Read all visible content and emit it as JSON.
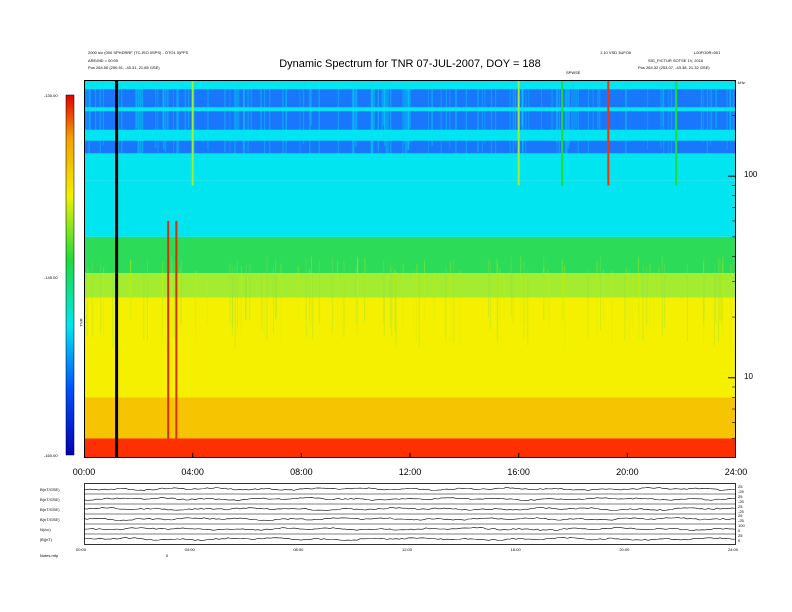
{
  "header": {
    "title": "Dynamic Spectrum for TNR 07-JUL-2007, DOY = 188",
    "left_line1": "2000 s/c (000 SPHDRRF (TC-ISO 0SPS) - OTO1 0)PFS",
    "left_line2": "ARE/MD = 00:00",
    "left_pos": "Pos    264.50 (250.51, -40.31, 21.85 GSE)",
    "right_line1": "1.10 VSD 3UFO0",
    "right_line2": "L00FO0R=001",
    "right_line3": "SIG_FICTUR SOTSE 1V, 2010",
    "right_pos": "Pos    264.32 (253.07, -43.38, 21.32 GSE)",
    "right_small": "SPWSE",
    "khz_label": "kHz"
  },
  "colorbar": {
    "ticks": [
      "-130.00",
      "-145.00",
      "-160.00"
    ],
    "label": "TNR"
  },
  "chart_data": {
    "type": "heatmap",
    "title": "Dynamic Spectrum for TNR 07-JUL-2007, DOY = 188",
    "x_ticks": [
      "00:00",
      "04:00",
      "08:00",
      "12:00",
      "16:00",
      "20:00",
      "24:00"
    ],
    "x_range_hours": [
      0,
      24
    ],
    "y_scale": "log",
    "y_ticks": [
      "100",
      "10"
    ],
    "y_tick_values": [
      100,
      10
    ],
    "y_range_khz": [
      4,
      300
    ],
    "colorbar_range": [
      -160,
      -130
    ],
    "colorbar_ticks": [
      -130,
      -145,
      -160
    ],
    "colormap": [
      "#0000c8",
      "#1c64ff",
      "#00e5f0",
      "#1cdc3c",
      "#f0f000",
      "#f5b400",
      "#ff2200"
    ],
    "bands": [
      {
        "from_khz": 300,
        "to_khz": 95,
        "color": "#00e5f0"
      },
      {
        "from_khz": 95,
        "to_khz": 50,
        "color": "#00e5f0"
      },
      {
        "from_khz": 50,
        "to_khz": 33,
        "color": "#2cdc58"
      },
      {
        "from_khz": 33,
        "to_khz": 25,
        "color": "#a4ec30"
      },
      {
        "from_khz": 25,
        "to_khz": 8,
        "color": "#f4f000"
      },
      {
        "from_khz": 8,
        "to_khz": 5,
        "color": "#f6c400"
      },
      {
        "from_khz": 5,
        "to_khz": 4,
        "color": "#ff3000"
      }
    ],
    "blue_bands_khz": [
      [
        270,
        220
      ],
      [
        210,
        170
      ],
      [
        150,
        130
      ]
    ],
    "vertical_features": [
      {
        "hour": 1.2,
        "color": "#000000"
      },
      {
        "hour": 3.1,
        "color": "#d83000"
      },
      {
        "hour": 3.4,
        "color": "#d83000"
      },
      {
        "hour": 4.0,
        "color": "#a4ec30"
      },
      {
        "hour": 16.0,
        "color": "#a4ec30"
      },
      {
        "hour": 17.6,
        "color": "#1cdc3c"
      },
      {
        "hour": 19.3,
        "color": "#ff3000"
      },
      {
        "hour": 21.8,
        "color": "#1cdc3c"
      }
    ]
  },
  "lower_panels": {
    "left_labels": [
      "B(nT/GSE)",
      "B(nT/GSE)",
      "B(nT/GSE)",
      "B(nT/GSE)",
      "N(/cc)",
      "|B|(nT)"
    ],
    "right_labels": [
      "25",
      "-25",
      "25",
      "-25",
      "25",
      "-25",
      "25",
      "-25",
      "100",
      "0",
      "25",
      "0"
    ],
    "x_ticks": [
      "00:00",
      "04:00",
      "08:00",
      "12:00",
      "16:00",
      "20:00",
      "24:00"
    ],
    "footer_label": "Notes    mfp",
    "footer_mark": "0"
  }
}
